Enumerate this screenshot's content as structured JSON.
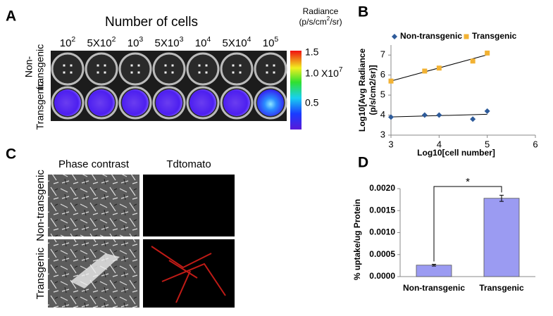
{
  "panel_a": {
    "label": "A",
    "title": "Number of cells",
    "columns": [
      {
        "base": "10",
        "exp": "2"
      },
      {
        "base": "5X10",
        "exp": "2"
      },
      {
        "base": "10",
        "exp": "3"
      },
      {
        "base": "5X10",
        "exp": "3"
      },
      {
        "base": "10",
        "exp": "4"
      },
      {
        "base": "5X10",
        "exp": "4"
      },
      {
        "base": "10",
        "exp": "5"
      }
    ],
    "rows": [
      [
        "Non-",
        "transgenic"
      ],
      [
        "Transgenic"
      ]
    ],
    "colorbar": {
      "title": [
        "Radiance",
        "(p/s/cm",
        "2",
        "/sr)"
      ],
      "ticks": [
        "1.5",
        "1.0",
        "0.5"
      ],
      "multiplier": {
        "base": "X10",
        "exp": "7"
      }
    }
  },
  "panel_c": {
    "label": "C",
    "columns": [
      "Phase contrast",
      "Tdtomato"
    ],
    "rows": [
      "Non-transgenic",
      "Transgenic"
    ]
  },
  "chart_data": [
    {
      "type": "scatter",
      "panel": "B",
      "xlabel": "Log10[cell number]",
      "ylabel": [
        "Log10[Avg Radiance",
        "(p/s/cm2/sr)]"
      ],
      "x": [
        3,
        3.7,
        4,
        4.7,
        5
      ],
      "series": [
        {
          "name": "Non-transgenic",
          "color": "#2e5b9a",
          "marker": "diamond",
          "values": [
            3.9,
            4.0,
            4.0,
            3.8,
            4.2
          ]
        },
        {
          "name": "Transgenic",
          "color": "#f2b233",
          "marker": "square",
          "values": [
            5.7,
            6.2,
            6.35,
            6.7,
            7.1
          ]
        }
      ],
      "trendline": true,
      "xlim": [
        3,
        6
      ],
      "xticks": [
        3,
        4,
        5,
        6
      ],
      "ylim": [
        3,
        7.5
      ],
      "yticks": [
        3,
        4,
        5,
        6,
        7
      ],
      "legend": "top"
    },
    {
      "type": "bar",
      "panel": "D",
      "ylabel": "% uptake/ug Protein",
      "categories": [
        "Non-transgenic",
        "Transgenic"
      ],
      "values": [
        0.00026,
        0.00178
      ],
      "errors": [
        2e-05,
        7e-05
      ],
      "color": "#9b9bf2",
      "ylim": [
        0,
        0.002
      ],
      "yticks": [
        {
          "value": 0,
          "label": "0.0000"
        },
        {
          "value": 0.0005,
          "label": "0.0005"
        },
        {
          "value": 0.001,
          "label": "0.0010"
        },
        {
          "value": 0.0015,
          "label": "0.0015"
        },
        {
          "value": 0.002,
          "label": "0.0020"
        }
      ],
      "annotation": "*"
    }
  ]
}
